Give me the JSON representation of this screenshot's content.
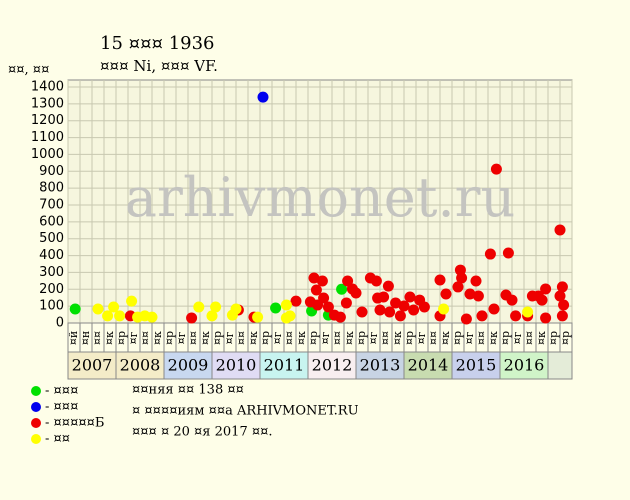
{
  "chart_data": {
    "type": "scatter",
    "title": "15 ¤¤¤ 1936",
    "subtitle": "¤¤¤ Ni, ¤¤¤ VF.",
    "y_label": "¤¤, ¤¤",
    "watermark": "arhivmonet.ru",
    "xlim": [
      0,
      42
    ],
    "ylim": [
      0,
      1400
    ],
    "yticks": [
      0,
      100,
      200,
      300,
      400,
      500,
      600,
      700,
      800,
      900,
      1000,
      1100,
      1200,
      1300,
      1400
    ],
    "xticks": [
      0,
      1,
      2,
      3,
      4,
      5,
      6,
      7,
      8,
      9,
      10,
      11,
      12,
      13,
      14,
      15,
      16,
      17,
      18,
      19,
      20,
      21,
      22,
      23,
      24,
      25,
      26,
      27,
      28,
      29,
      30,
      31,
      32,
      33,
      34,
      35,
      36,
      37,
      38,
      39,
      40,
      41,
      42
    ],
    "grid": true,
    "quarter_labels": [
      "¤й",
      "¤н",
      "¤¤",
      "¤к",
      "¤р",
      "¤г",
      "¤¤",
      "¤к",
      "¤р",
      "¤г",
      "¤¤",
      "¤к",
      "¤р",
      "¤г",
      "¤¤",
      "¤к",
      "¤р",
      "¤г",
      "¤¤",
      "¤к",
      "¤р",
      "¤г",
      "¤¤",
      "¤к",
      "¤р",
      "¤г",
      "¤¤",
      "¤к",
      "¤р",
      "¤г",
      "¤¤",
      "¤к",
      "¤р",
      "¤г",
      "¤¤",
      "¤к",
      "¤р",
      "¤г",
      "¤¤",
      "¤к",
      "¤р",
      "¤р"
    ],
    "years": [
      "2007",
      "2008",
      "2009",
      "2010",
      "2011",
      "2012",
      "2013",
      "2014",
      "2015",
      "2016"
    ],
    "year_colors": [
      "#f4ecc8",
      "#f4ecc8",
      "#c8d8f0",
      "#e0dcf4",
      "#c8f4f0",
      "#f8eef0",
      "#c8d4e4",
      "#c8dcb0",
      "#c8d0ec",
      "#d0f4c8"
    ],
    "series": [
      {
        "name": "- ¤¤¤",
        "color": "#00e000",
        "x": [
          0.6,
          17.3,
          20.3,
          22.8,
          21.7
        ],
        "y": [
          83,
          89,
          71,
          200,
          47
        ]
      },
      {
        "name": "- ¤¤¤",
        "color": "#0000ee",
        "x": [
          16.25
        ],
        "y": [
          1340
        ]
      },
      {
        "name": "- ¤¤¤¤¤Б",
        "color": "#ee0000",
        "x": [
          5.2,
          10.3,
          14.2,
          15.5,
          19,
          20.2,
          20.5,
          21.2,
          20.7,
          20.8,
          21.3,
          21.7,
          22.2,
          22.7,
          23.2,
          23.3,
          23.7,
          24,
          24.5,
          25.2,
          25.7,
          25.8,
          26,
          26.3,
          26.7,
          26.8,
          27.3,
          27.7,
          28,
          28.5,
          28.8,
          29.3,
          29.7,
          31,
          31,
          31.5,
          32.7,
          32.5,
          32.8,
          33.2,
          33.5,
          34,
          34.2,
          34.5,
          35.2,
          35.7,
          35.5,
          36.7,
          36.5,
          37,
          37.3,
          38.3,
          38.7,
          39.2,
          39.5,
          39.8,
          39.8,
          41,
          41.2,
          41,
          41.3,
          41.2
        ],
        "y": [
          42,
          30,
          77,
          35,
          130,
          125,
          267,
          249,
          196,
          107,
          148,
          95,
          47,
          35,
          119,
          249,
          202,
          178,
          65,
          267,
          249,
          148,
          77,
          154,
          219,
          65,
          119,
          42,
          101,
          154,
          77,
          136,
          95,
          255,
          42,
          172,
          314,
          214,
          267,
          24,
          172,
          249,
          160,
          42,
          409,
          913,
          83,
          415,
          166,
          136,
          42,
          42,
          160,
          160,
          136,
          202,
          30,
          552,
          214,
          160,
          107,
          42
        ]
      },
      {
        "name": "- ¤¤",
        "color": "#ffff00",
        "x": [
          2.5,
          3.3,
          3.8,
          4.3,
          5.3,
          5.8,
          6.4,
          7,
          10.9,
          12,
          12.3,
          13.7,
          14,
          15.8,
          18.2,
          18.5,
          18.2,
          31.3,
          38.3
        ],
        "y": [
          83,
          42,
          95,
          42,
          130,
          35,
          42,
          35,
          95,
          42,
          95,
          47,
          83,
          35,
          107,
          42,
          30,
          83,
          65
        ]
      }
    ],
    "notes": [
      "¤¤няя ¤¤ 138 ¤¤",
      "¤ ¤¤¤¤иям ¤¤а ARHIVMONET.RU",
      "¤¤¤ ¤ 20 ¤я 2017 ¤¤."
    ]
  }
}
